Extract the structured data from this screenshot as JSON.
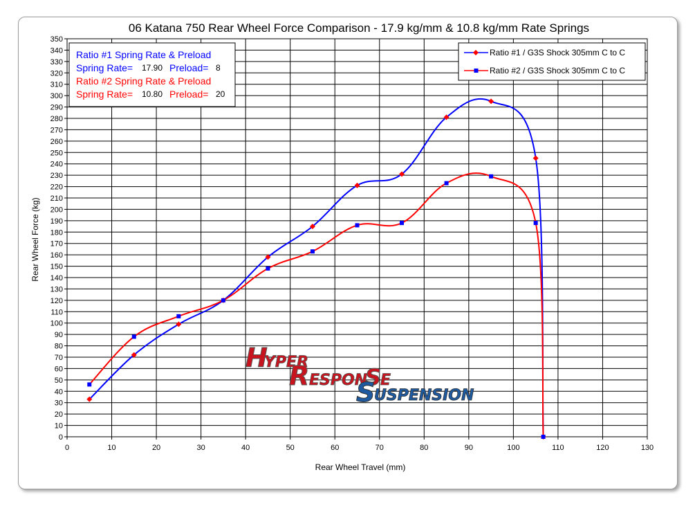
{
  "chart_data": {
    "type": "line",
    "title": "06 Katana 750 Rear Wheel Force Comparison - 17.9 kg/mm & 10.8 kg/mm Rate Springs",
    "xlabel": "Rear Wheel Travel (mm)",
    "ylabel": "Rear Wheel Force (kg)",
    "xlim": [
      0,
      130
    ],
    "ylim": [
      0,
      350
    ],
    "x_ticks": [
      "0",
      "10",
      "20",
      "30",
      "40",
      "50",
      "60",
      "70",
      "80",
      "90",
      "100",
      "110",
      "120",
      "130"
    ],
    "y_ticks": [
      "0",
      "10",
      "20",
      "30",
      "40",
      "50",
      "60",
      "70",
      "80",
      "90",
      "100",
      "110",
      "120",
      "130",
      "140",
      "150",
      "160",
      "170",
      "180",
      "190",
      "200",
      "210",
      "220",
      "230",
      "240",
      "250",
      "260",
      "270",
      "280",
      "290",
      "300",
      "310",
      "320",
      "330",
      "340",
      "350"
    ],
    "grid": true,
    "legend_placement": "top-right",
    "series": [
      {
        "name": "Ratio #1 / G3S Shock 305mm C to C",
        "color": "#0000ff",
        "marker_color": "#ff0000",
        "marker": "diamond",
        "points": [
          [
            5,
            33
          ],
          [
            15,
            72
          ],
          [
            25,
            99
          ],
          [
            35,
            120
          ],
          [
            45,
            158
          ],
          [
            55,
            185
          ],
          [
            65,
            221
          ],
          [
            75,
            231
          ],
          [
            85,
            281
          ],
          [
            95,
            295
          ],
          [
            105,
            245
          ],
          [
            106.7,
            0
          ]
        ]
      },
      {
        "name": "Ratio #2 / G3S Shock 305mm C to C",
        "color": "#ff0000",
        "marker_color": "#0000ff",
        "marker": "square",
        "points": [
          [
            5,
            46
          ],
          [
            15,
            88
          ],
          [
            25,
            106
          ],
          [
            35,
            120
          ],
          [
            45,
            148
          ],
          [
            55,
            163
          ],
          [
            65,
            186
          ],
          [
            75,
            188
          ],
          [
            85,
            223
          ],
          [
            95,
            229
          ],
          [
            105,
            188
          ],
          [
            106.7,
            0
          ]
        ]
      }
    ]
  },
  "info_box": {
    "ratio1_title": "Ratio #1 Spring Rate & Preload",
    "ratio1_rate_label": "Spring Rate=",
    "ratio1_rate_value": "17.90",
    "ratio1_preload_label": "Preload=",
    "ratio1_preload_value": "8",
    "ratio2_title": "Ratio #2 Spring Rate & Preload",
    "ratio2_rate_label": "Spring Rate=",
    "ratio2_rate_value": "10.80",
    "ratio2_preload_label": "Preload=",
    "ratio2_preload_value": "20",
    "ratio1_color": "#0000ff",
    "ratio2_color": "#ff0000"
  },
  "logo": {
    "line1": "HYPER",
    "line2": "RESPONSE",
    "line3": "SUSPENSION"
  }
}
